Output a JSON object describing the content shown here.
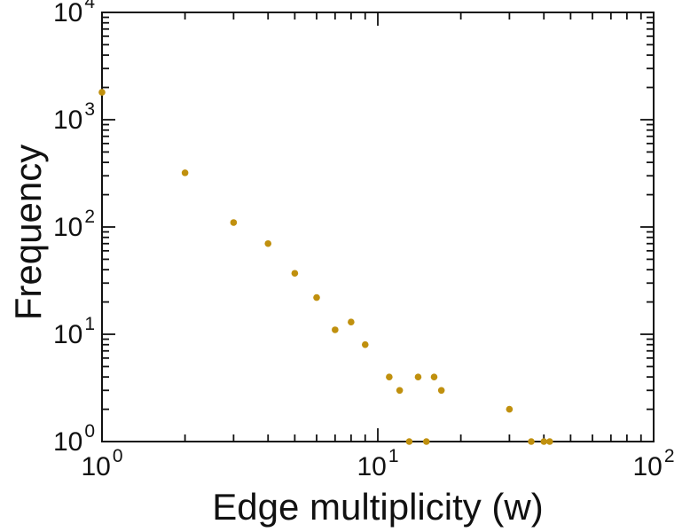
{
  "background": "#ffffff",
  "axis_color": "#111111",
  "chart_data": {
    "type": "scatter",
    "title": "",
    "xlabel": "Edge multiplicity (w)",
    "ylabel": "Frequency",
    "xscale": "log",
    "yscale": "log",
    "xlim": [
      1,
      100
    ],
    "ylim": [
      1,
      10000
    ],
    "grid": false,
    "legend": "none",
    "tick_base": "10",
    "x_tick_exponents": [
      0,
      1,
      2
    ],
    "y_tick_exponents": [
      0,
      1,
      2,
      3,
      4
    ],
    "marker": {
      "shape": "circle",
      "color": "#c0900e",
      "radius": 3.8
    },
    "points": [
      [
        1,
        1800
      ],
      [
        2,
        320
      ],
      [
        3,
        110
      ],
      [
        4,
        70
      ],
      [
        5,
        37
      ],
      [
        6,
        22
      ],
      [
        7,
        11
      ],
      [
        8,
        13
      ],
      [
        9,
        8
      ],
      [
        11,
        4
      ],
      [
        12,
        3
      ],
      [
        13,
        1
      ],
      [
        14,
        4
      ],
      [
        15,
        1
      ],
      [
        16,
        4
      ],
      [
        17,
        3
      ],
      [
        30,
        2
      ],
      [
        36,
        1
      ],
      [
        40,
        1
      ],
      [
        42,
        1
      ]
    ]
  }
}
